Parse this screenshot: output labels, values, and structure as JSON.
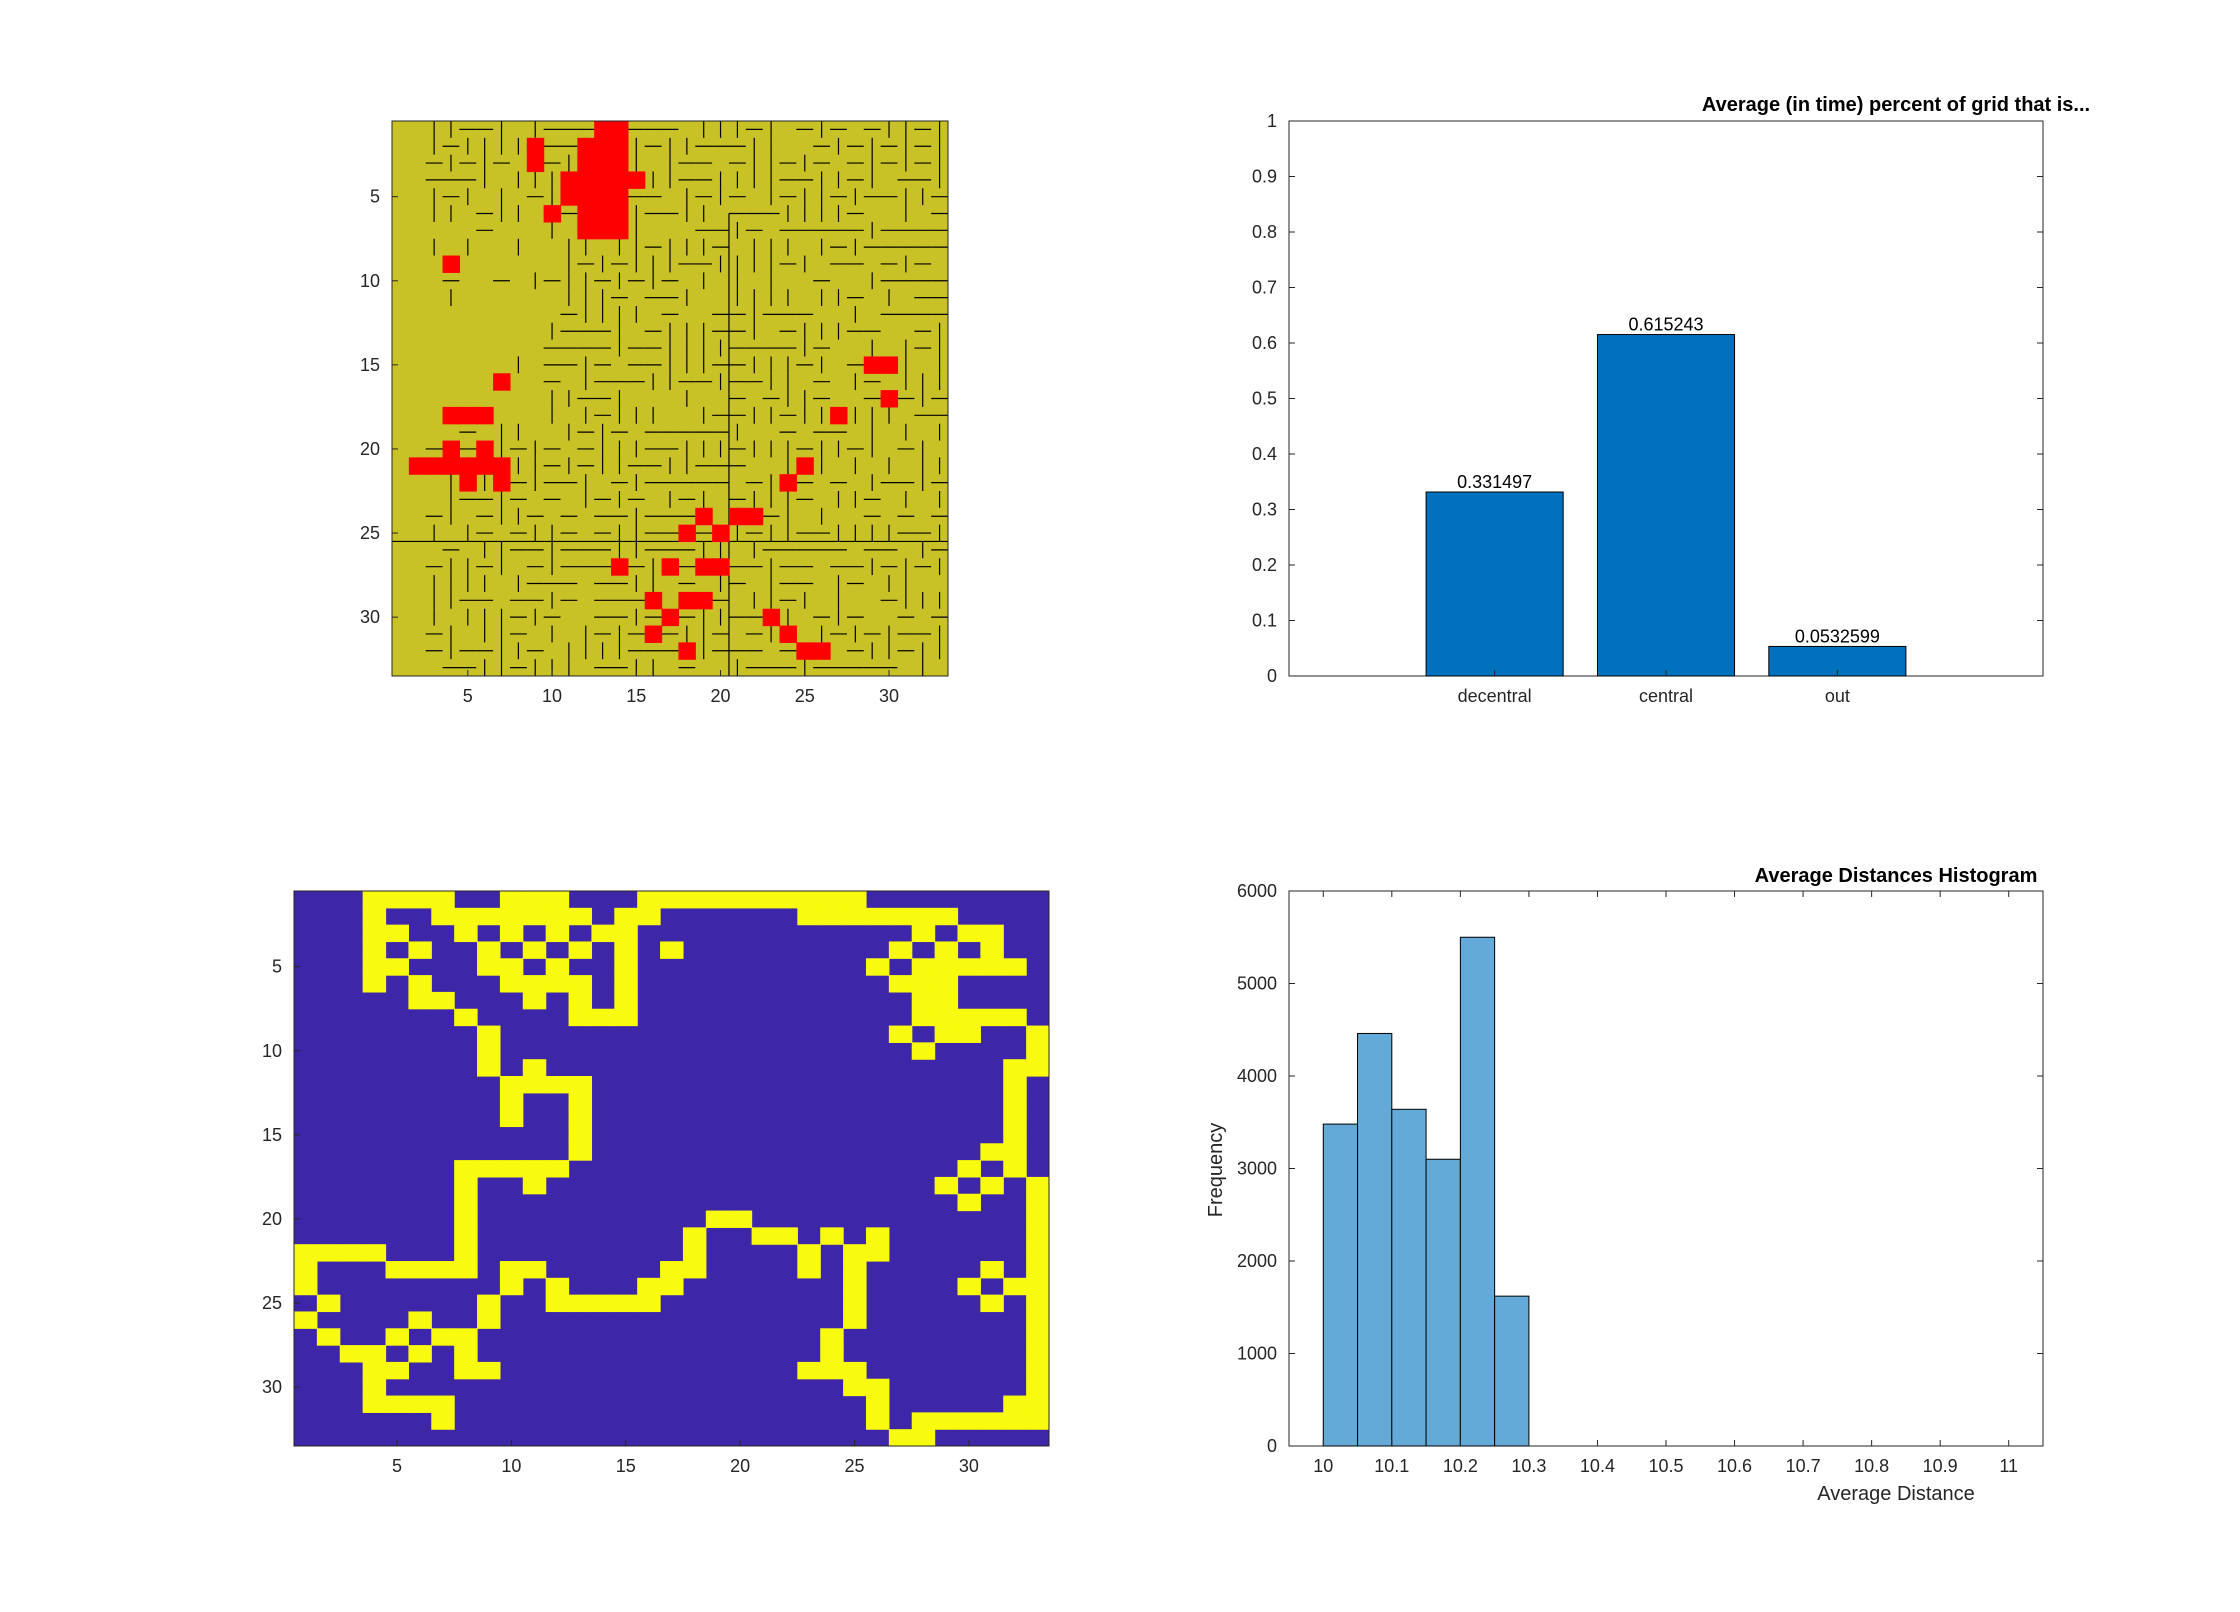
{
  "chart_data": [
    {
      "type": "heatmap",
      "description_tag": "grid-image",
      "xlim": [
        0.5,
        33.5
      ],
      "ylim": [
        0.5,
        33.5
      ],
      "x_ticks": [
        "5",
        "10",
        "15",
        "20",
        "25",
        "30"
      ],
      "y_ticks": [
        "5",
        "10",
        "15",
        "20",
        "25",
        "30"
      ],
      "background_color": "#c9c227",
      "red_color": "#ff0000",
      "line_color": "#000000",
      "red_cells": [
        [
          13,
          1
        ],
        [
          14,
          1
        ],
        [
          12,
          2
        ],
        [
          13,
          2
        ],
        [
          14,
          2
        ],
        [
          9,
          2
        ],
        [
          9,
          3
        ],
        [
          12,
          3
        ],
        [
          13,
          3
        ],
        [
          14,
          3
        ],
        [
          11,
          4
        ],
        [
          12,
          4
        ],
        [
          13,
          4
        ],
        [
          14,
          4
        ],
        [
          15,
          4
        ],
        [
          11,
          5
        ],
        [
          12,
          5
        ],
        [
          13,
          5
        ],
        [
          14,
          5
        ],
        [
          12,
          6
        ],
        [
          13,
          6
        ],
        [
          14,
          6
        ],
        [
          10,
          6
        ],
        [
          12,
          7
        ],
        [
          13,
          7
        ],
        [
          14,
          7
        ],
        [
          4,
          9
        ],
        [
          7,
          16
        ],
        [
          29,
          15
        ],
        [
          30,
          15
        ],
        [
          30,
          17
        ],
        [
          27,
          18
        ],
        [
          4,
          18
        ],
        [
          5,
          18
        ],
        [
          6,
          18
        ],
        [
          4,
          20
        ],
        [
          6,
          20
        ],
        [
          2,
          21
        ],
        [
          3,
          21
        ],
        [
          4,
          21
        ],
        [
          5,
          21
        ],
        [
          6,
          21
        ],
        [
          7,
          21
        ],
        [
          5,
          22
        ],
        [
          7,
          22
        ],
        [
          25,
          21
        ],
        [
          24,
          22
        ],
        [
          19,
          24
        ],
        [
          21,
          24
        ],
        [
          22,
          24
        ],
        [
          20,
          25
        ],
        [
          18,
          25
        ],
        [
          14,
          27
        ],
        [
          17,
          27
        ],
        [
          19,
          27
        ],
        [
          20,
          27
        ],
        [
          16,
          29
        ],
        [
          18,
          29
        ],
        [
          19,
          29
        ],
        [
          17,
          30
        ],
        [
          16,
          31
        ],
        [
          23,
          30
        ],
        [
          24,
          31
        ],
        [
          25,
          32
        ],
        [
          26,
          32
        ],
        [
          18,
          32
        ]
      ]
    },
    {
      "type": "bar",
      "title": "Average (in time) percent of grid that is...",
      "categories": [
        "decentral",
        "central",
        "out"
      ],
      "values": [
        0.331497,
        0.615243,
        0.0532599
      ],
      "data_labels": [
        "0.331497",
        "0.615243",
        "0.0532599"
      ],
      "ylim": [
        0,
        1
      ],
      "y_ticks": [
        "0",
        "0.1",
        "0.2",
        "0.3",
        "0.4",
        "0.5",
        "0.6",
        "0.7",
        "0.8",
        "0.9",
        "1"
      ],
      "bar_color": "#0072bd"
    },
    {
      "type": "heatmap",
      "description_tag": "binary-image",
      "xlim": [
        0.5,
        33.5
      ],
      "ylim": [
        0.5,
        33.5
      ],
      "x_ticks": [
        "5",
        "10",
        "15",
        "20",
        "25",
        "30"
      ],
      "y_ticks": [
        "5",
        "10",
        "15",
        "20",
        "25",
        "30"
      ],
      "background_color": "#3e26a8",
      "yellow_color": "#f9fb0e",
      "yellow_cells": [
        [
          4,
          1
        ],
        [
          5,
          1
        ],
        [
          6,
          1
        ],
        [
          7,
          1
        ],
        [
          10,
          1
        ],
        [
          11,
          1
        ],
        [
          12,
          1
        ],
        [
          16,
          1
        ],
        [
          17,
          1
        ],
        [
          18,
          1
        ],
        [
          19,
          1
        ],
        [
          20,
          1
        ],
        [
          21,
          1
        ],
        [
          22,
          1
        ],
        [
          23,
          1
        ],
        [
          24,
          1
        ],
        [
          25,
          1
        ],
        [
          4,
          2
        ],
        [
          7,
          2
        ],
        [
          8,
          2
        ],
        [
          9,
          2
        ],
        [
          10,
          2
        ],
        [
          11,
          2
        ],
        [
          12,
          2
        ],
        [
          13,
          2
        ],
        [
          15,
          2
        ],
        [
          16,
          2
        ],
        [
          23,
          2
        ],
        [
          24,
          2
        ],
        [
          25,
          2
        ],
        [
          26,
          2
        ],
        [
          27,
          2
        ],
        [
          28,
          2
        ],
        [
          29,
          2
        ],
        [
          4,
          3
        ],
        [
          5,
          3
        ],
        [
          8,
          3
        ],
        [
          10,
          3
        ],
        [
          12,
          3
        ],
        [
          14,
          3
        ],
        [
          15,
          3
        ],
        [
          28,
          3
        ],
        [
          30,
          3
        ],
        [
          31,
          3
        ],
        [
          4,
          4
        ],
        [
          6,
          4
        ],
        [
          9,
          4
        ],
        [
          11,
          4
        ],
        [
          13,
          4
        ],
        [
          15,
          4
        ],
        [
          17,
          4
        ],
        [
          27,
          4
        ],
        [
          29,
          4
        ],
        [
          31,
          4
        ],
        [
          4,
          5
        ],
        [
          5,
          5
        ],
        [
          9,
          5
        ],
        [
          10,
          5
        ],
        [
          12,
          5
        ],
        [
          15,
          5
        ],
        [
          26,
          5
        ],
        [
          28,
          5
        ],
        [
          29,
          5
        ],
        [
          30,
          5
        ],
        [
          31,
          5
        ],
        [
          32,
          5
        ],
        [
          4,
          6
        ],
        [
          6,
          6
        ],
        [
          10,
          6
        ],
        [
          11,
          6
        ],
        [
          12,
          6
        ],
        [
          13,
          6
        ],
        [
          15,
          6
        ],
        [
          27,
          6
        ],
        [
          28,
          6
        ],
        [
          29,
          6
        ],
        [
          6,
          7
        ],
        [
          7,
          7
        ],
        [
          11,
          7
        ],
        [
          13,
          7
        ],
        [
          15,
          7
        ],
        [
          28,
          7
        ],
        [
          29,
          7
        ],
        [
          8,
          8
        ],
        [
          13,
          8
        ],
        [
          14,
          8
        ],
        [
          15,
          8
        ],
        [
          28,
          8
        ],
        [
          29,
          8
        ],
        [
          30,
          8
        ],
        [
          31,
          8
        ],
        [
          32,
          8
        ],
        [
          9,
          9
        ],
        [
          27,
          9
        ],
        [
          29,
          9
        ],
        [
          30,
          9
        ],
        [
          33,
          9
        ],
        [
          9,
          10
        ],
        [
          28,
          10
        ],
        [
          33,
          10
        ],
        [
          9,
          11
        ],
        [
          11,
          11
        ],
        [
          32,
          11
        ],
        [
          33,
          11
        ],
        [
          10,
          12
        ],
        [
          11,
          12
        ],
        [
          12,
          12
        ],
        [
          13,
          12
        ],
        [
          32,
          12
        ],
        [
          10,
          13
        ],
        [
          13,
          13
        ],
        [
          32,
          13
        ],
        [
          10,
          14
        ],
        [
          13,
          14
        ],
        [
          32,
          14
        ],
        [
          13,
          15
        ],
        [
          32,
          15
        ],
        [
          13,
          16
        ],
        [
          31,
          16
        ],
        [
          32,
          16
        ],
        [
          8,
          17
        ],
        [
          9,
          17
        ],
        [
          10,
          17
        ],
        [
          11,
          17
        ],
        [
          12,
          17
        ],
        [
          30,
          17
        ],
        [
          32,
          17
        ],
        [
          8,
          18
        ],
        [
          11,
          18
        ],
        [
          29,
          18
        ],
        [
          31,
          18
        ],
        [
          33,
          18
        ],
        [
          8,
          19
        ],
        [
          30,
          19
        ],
        [
          33,
          19
        ],
        [
          8,
          20
        ],
        [
          19,
          20
        ],
        [
          20,
          20
        ],
        [
          33,
          20
        ],
        [
          8,
          21
        ],
        [
          18,
          21
        ],
        [
          21,
          21
        ],
        [
          22,
          21
        ],
        [
          24,
          21
        ],
        [
          26,
          21
        ],
        [
          33,
          21
        ],
        [
          1,
          22
        ],
        [
          2,
          22
        ],
        [
          3,
          22
        ],
        [
          4,
          22
        ],
        [
          8,
          22
        ],
        [
          18,
          22
        ],
        [
          23,
          22
        ],
        [
          25,
          22
        ],
        [
          26,
          22
        ],
        [
          33,
          22
        ],
        [
          1,
          23
        ],
        [
          5,
          23
        ],
        [
          6,
          23
        ],
        [
          7,
          23
        ],
        [
          8,
          23
        ],
        [
          10,
          23
        ],
        [
          11,
          23
        ],
        [
          17,
          23
        ],
        [
          18,
          23
        ],
        [
          23,
          23
        ],
        [
          25,
          23
        ],
        [
          31,
          23
        ],
        [
          33,
          23
        ],
        [
          1,
          24
        ],
        [
          10,
          24
        ],
        [
          12,
          24
        ],
        [
          16,
          24
        ],
        [
          17,
          24
        ],
        [
          25,
          24
        ],
        [
          30,
          24
        ],
        [
          32,
          24
        ],
        [
          33,
          24
        ],
        [
          2,
          25
        ],
        [
          9,
          25
        ],
        [
          12,
          25
        ],
        [
          13,
          25
        ],
        [
          14,
          25
        ],
        [
          15,
          25
        ],
        [
          16,
          25
        ],
        [
          25,
          25
        ],
        [
          31,
          25
        ],
        [
          33,
          25
        ],
        [
          1,
          26
        ],
        [
          9,
          26
        ],
        [
          6,
          26
        ],
        [
          25,
          26
        ],
        [
          33,
          26
        ],
        [
          2,
          27
        ],
        [
          5,
          27
        ],
        [
          7,
          27
        ],
        [
          8,
          27
        ],
        [
          24,
          27
        ],
        [
          33,
          27
        ],
        [
          3,
          28
        ],
        [
          4,
          28
        ],
        [
          6,
          28
        ],
        [
          8,
          28
        ],
        [
          24,
          28
        ],
        [
          33,
          28
        ],
        [
          4,
          29
        ],
        [
          5,
          29
        ],
        [
          8,
          29
        ],
        [
          9,
          29
        ],
        [
          23,
          29
        ],
        [
          24,
          29
        ],
        [
          25,
          29
        ],
        [
          33,
          29
        ],
        [
          4,
          30
        ],
        [
          25,
          30
        ],
        [
          26,
          30
        ],
        [
          33,
          30
        ],
        [
          4,
          31
        ],
        [
          5,
          31
        ],
        [
          6,
          31
        ],
        [
          7,
          31
        ],
        [
          26,
          31
        ],
        [
          32,
          31
        ],
        [
          33,
          31
        ],
        [
          7,
          32
        ],
        [
          26,
          32
        ],
        [
          28,
          32
        ],
        [
          29,
          32
        ],
        [
          30,
          32
        ],
        [
          31,
          32
        ],
        [
          32,
          32
        ],
        [
          33,
          32
        ],
        [
          27,
          33
        ],
        [
          28,
          33
        ]
      ]
    },
    {
      "type": "bar",
      "subtype": "histogram",
      "title": "Average Distances Histogram",
      "xlabel": "Average Distance",
      "ylabel": "Frequency",
      "bin_edges": [
        10.0,
        10.05,
        10.1,
        10.15,
        10.2,
        10.25,
        10.3
      ],
      "values": [
        3480,
        4460,
        3640,
        3100,
        5500,
        1620
      ],
      "xlim": [
        9.95,
        11.05
      ],
      "ylim": [
        0,
        6000
      ],
      "x_ticks": [
        "10",
        "10.1",
        "10.2",
        "10.3",
        "10.4",
        "10.5",
        "10.6",
        "10.7",
        "10.8",
        "10.9",
        "11"
      ],
      "y_ticks": [
        "0",
        "1000",
        "2000",
        "3000",
        "4000",
        "5000",
        "6000"
      ],
      "bar_color": "#64aad9"
    }
  ]
}
